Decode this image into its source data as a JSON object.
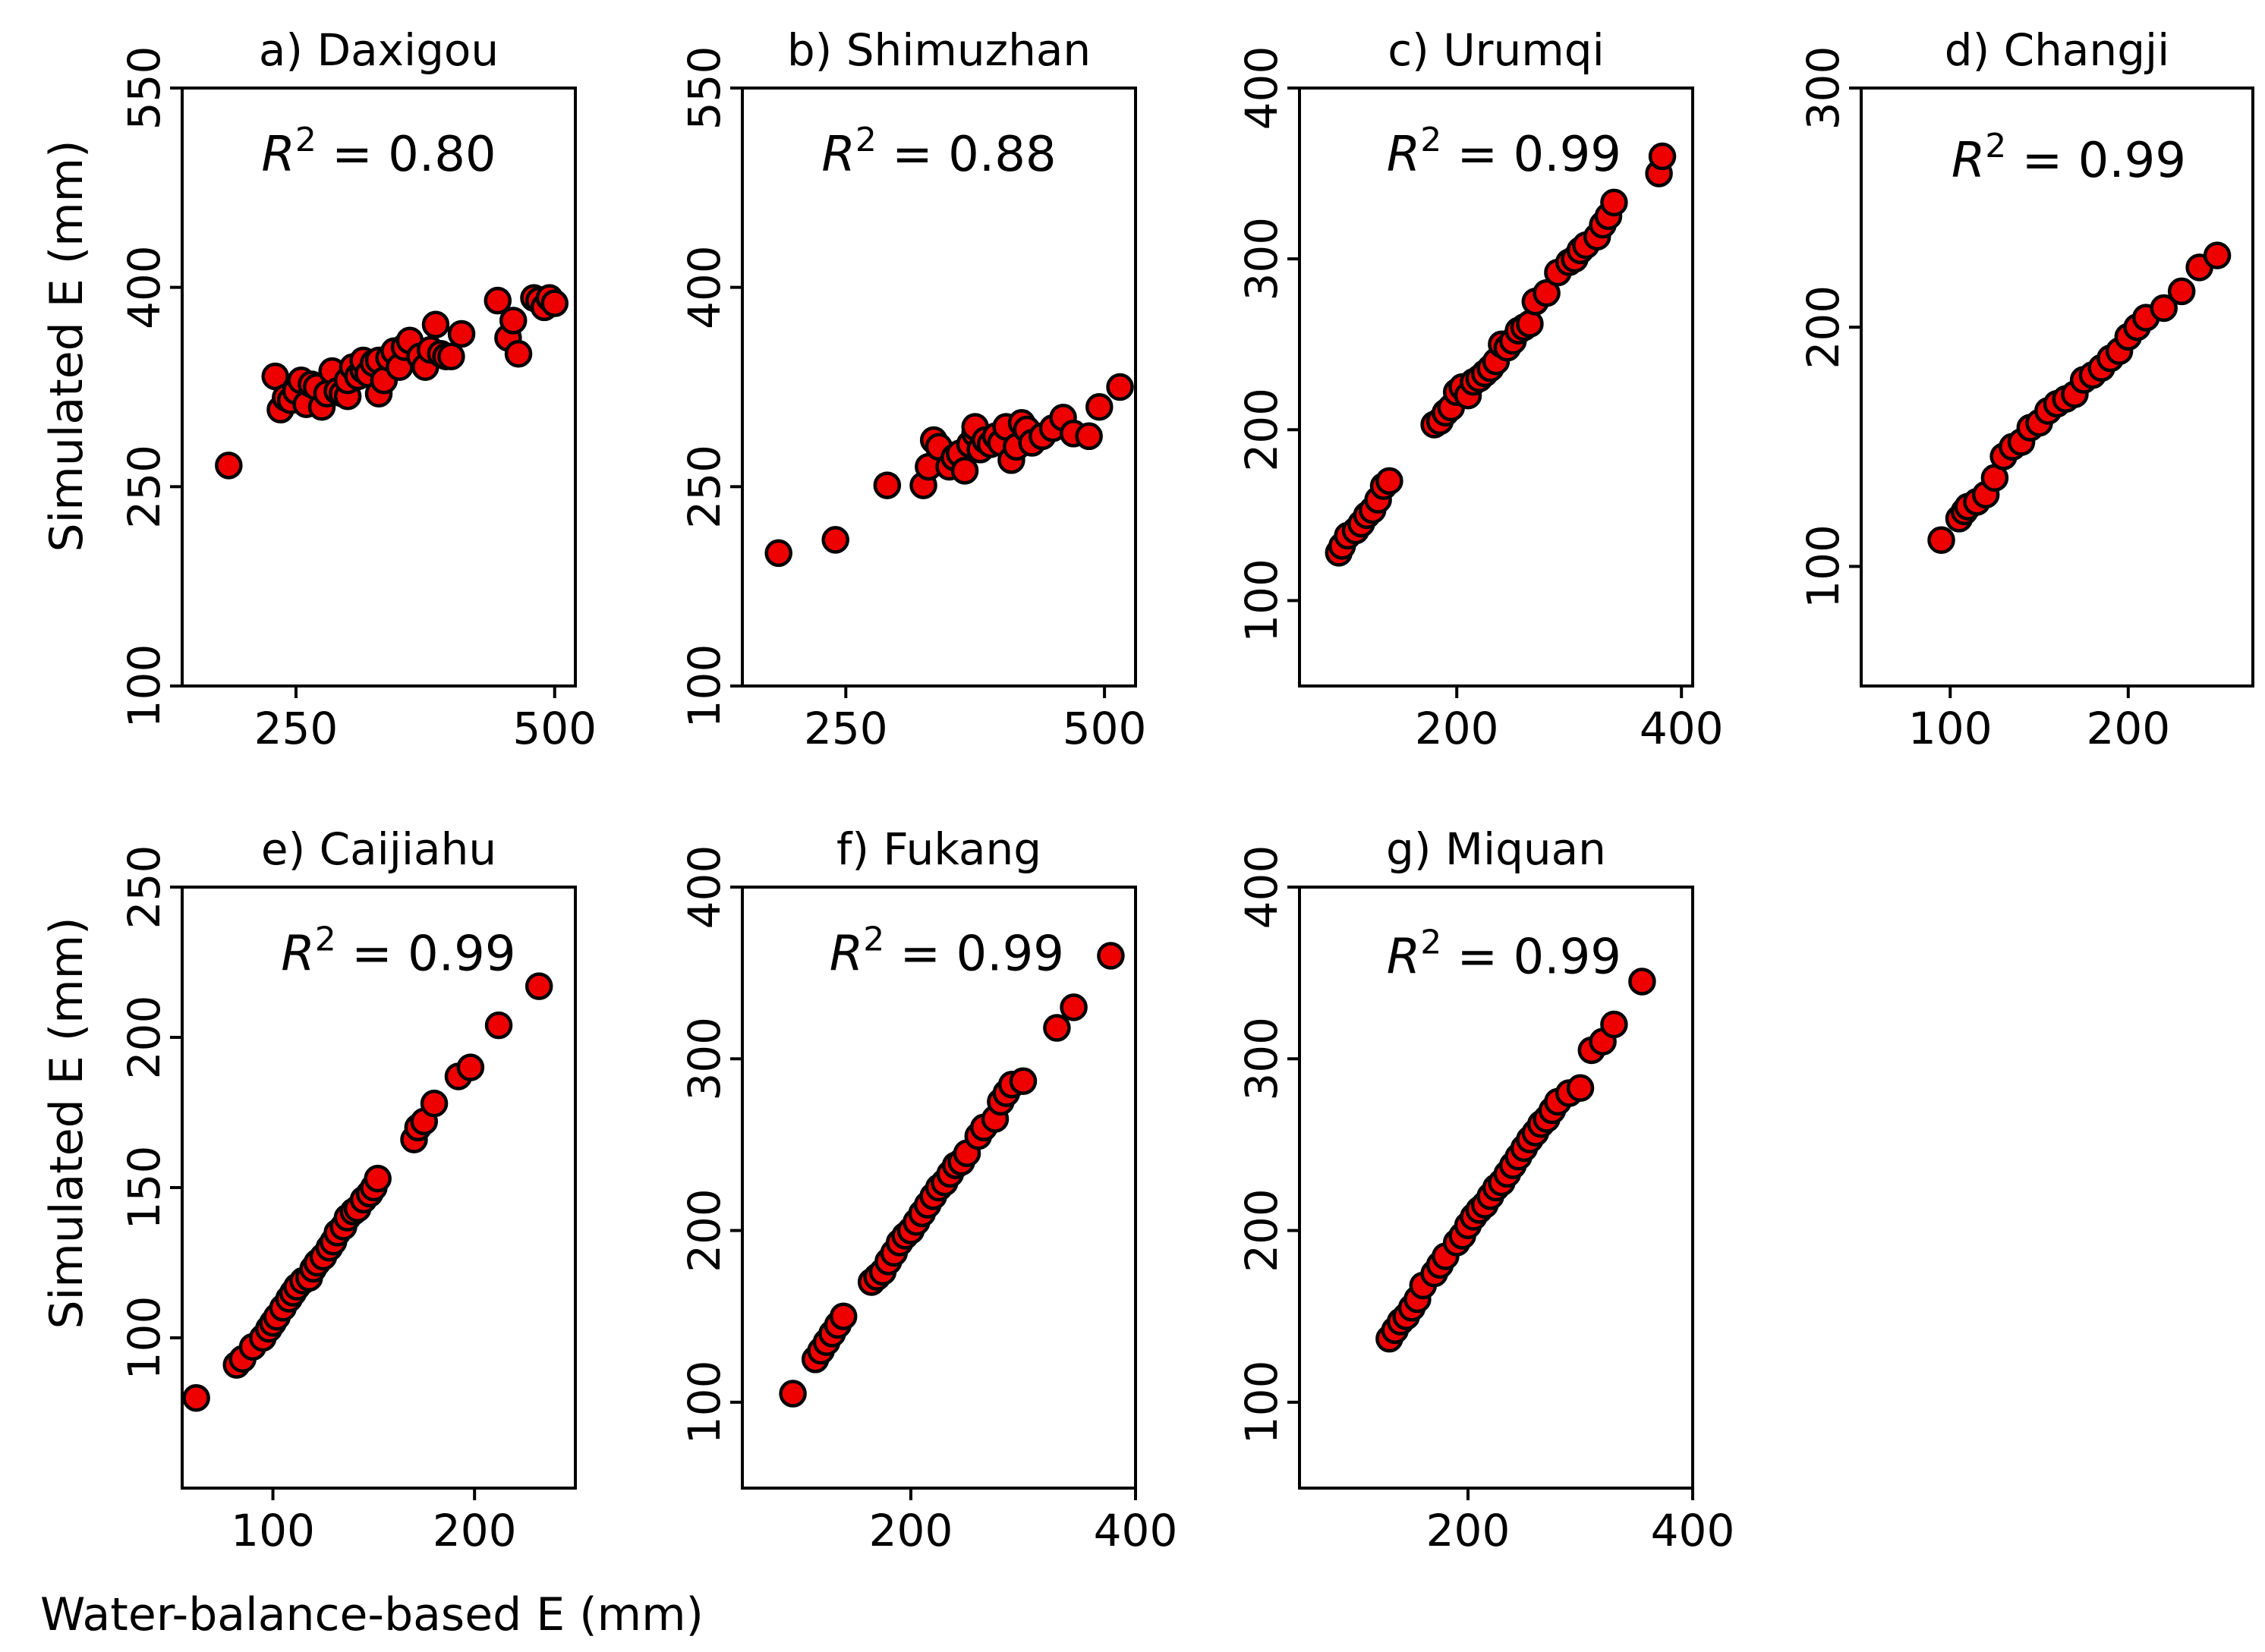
{
  "figure": {
    "ylabel_top": "Simulated E (mm)",
    "ylabel_bottom": "Simulated E (mm)",
    "xlabel": "Water-balance-based E (mm)"
  },
  "chart_data": [
    {
      "type": "scatter",
      "title": "a) Daxigou",
      "r2_label": "R",
      "r2_value": "= 0.80",
      "xlim": [
        140,
        520
      ],
      "ylim": [
        100,
        550
      ],
      "xticks": [
        250,
        500
      ],
      "yticks": [
        100,
        250,
        400,
        550
      ],
      "x": [
        185,
        230,
        235,
        240,
        245,
        250,
        255,
        260,
        265,
        270,
        275,
        280,
        285,
        290,
        295,
        300,
        300,
        305,
        310,
        315,
        315,
        320,
        325,
        330,
        330,
        335,
        340,
        345,
        350,
        355,
        360,
        370,
        375,
        380,
        385,
        390,
        395,
        400,
        410,
        445,
        455,
        460,
        465,
        480,
        485,
        490,
        495,
        500
      ],
      "y": [
        266,
        333,
        308,
        317,
        315,
        322,
        330,
        312,
        327,
        325,
        310,
        320,
        337,
        322,
        320,
        318,
        330,
        340,
        333,
        338,
        345,
        335,
        343,
        320,
        345,
        330,
        347,
        352,
        340,
        355,
        360,
        348,
        340,
        353,
        372,
        350,
        348,
        348,
        365,
        390,
        362,
        375,
        350,
        392,
        390,
        385,
        392,
        388
      ]
    },
    {
      "type": "scatter",
      "title": "b) Shimuzhan",
      "r2_label": "R",
      "r2_value": "= 0.88",
      "xlim": [
        150,
        530
      ],
      "ylim": [
        100,
        550
      ],
      "xticks": [
        250,
        500
      ],
      "yticks": [
        100,
        250,
        400,
        550
      ],
      "x": [
        185,
        240,
        290,
        325,
        330,
        335,
        340,
        350,
        355,
        360,
        365,
        370,
        375,
        375,
        380,
        385,
        390,
        395,
        400,
        405,
        410,
        415,
        420,
        425,
        430,
        440,
        450,
        460,
        470,
        485,
        495,
        515
      ],
      "y": [
        200,
        210,
        251,
        251,
        265,
        285,
        280,
        265,
        272,
        275,
        262,
        282,
        290,
        295,
        278,
        285,
        282,
        288,
        283,
        295,
        270,
        280,
        298,
        293,
        283,
        288,
        294,
        302,
        290,
        288,
        310,
        325
      ]
    },
    {
      "type": "scatter",
      "title": "c) Urumqi",
      "r2_label": "R",
      "r2_value": "= 0.99",
      "xlim": [
        60,
        410
      ],
      "ylim": [
        50,
        400
      ],
      "xticks": [
        200,
        400
      ],
      "yticks": [
        100,
        200,
        300,
        400
      ],
      "x": [
        95,
        98,
        103,
        110,
        115,
        120,
        125,
        130,
        135,
        140,
        180,
        185,
        190,
        195,
        200,
        205,
        210,
        215,
        220,
        225,
        230,
        235,
        240,
        245,
        250,
        255,
        260,
        265,
        270,
        280,
        290,
        300,
        305,
        310,
        315,
        325,
        330,
        335,
        340,
        380,
        383
      ],
      "y": [
        128,
        132,
        138,
        141,
        145,
        150,
        153,
        159,
        167,
        170,
        203,
        205,
        210,
        213,
        222,
        225,
        220,
        228,
        230,
        233,
        236,
        240,
        250,
        248,
        252,
        258,
        260,
        262,
        275,
        280,
        292,
        298,
        300,
        305,
        308,
        313,
        320,
        325,
        333,
        350,
        360
      ]
    },
    {
      "type": "scatter",
      "title": "d) Changji",
      "r2_label": "R",
      "r2_value": "= 0.99",
      "xlim": [
        50,
        270
      ],
      "ylim": [
        50,
        300
      ],
      "xticks": [
        100,
        200
      ],
      "yticks": [
        100,
        200,
        300
      ],
      "x": [
        95,
        105,
        108,
        110,
        115,
        120,
        125,
        130,
        135,
        140,
        145,
        150,
        155,
        160,
        165,
        170,
        175,
        180,
        185,
        190,
        195,
        200,
        205,
        210,
        220,
        230,
        240,
        250
      ],
      "y": [
        111,
        120,
        123,
        125,
        127,
        130,
        137,
        146,
        150,
        152,
        158,
        160,
        165,
        168,
        170,
        172,
        178,
        180,
        183,
        187,
        190,
        196,
        200,
        204,
        208,
        215,
        225,
        230
      ]
    },
    {
      "type": "scatter",
      "title": "e) Caijiahu",
      "r2_label": "R",
      "r2_value": "= 0.99",
      "xlim": [
        55,
        250
      ],
      "ylim": [
        50,
        250
      ],
      "xticks": [
        100,
        200
      ],
      "yticks": [
        100,
        150,
        200,
        250
      ],
      "x": [
        62,
        82,
        85,
        90,
        95,
        98,
        100,
        102,
        105,
        108,
        110,
        112,
        115,
        118,
        120,
        122,
        125,
        128,
        130,
        132,
        135,
        137,
        140,
        142,
        145,
        148,
        150,
        152,
        170,
        172,
        175,
        180,
        192,
        198,
        212,
        232
      ],
      "y": [
        80,
        91,
        93,
        97,
        100,
        103,
        105,
        107,
        110,
        113,
        115,
        117,
        119,
        120,
        123,
        125,
        127,
        130,
        132,
        135,
        137,
        140,
        142,
        143,
        146,
        148,
        150,
        153,
        166,
        170,
        172,
        178,
        187,
        190,
        204,
        217
      ]
    },
    {
      "type": "scatter",
      "title": "f) Fukang",
      "r2_label": "R",
      "r2_value": "= 0.99",
      "xlim": [
        50,
        400
      ],
      "ylim": [
        50,
        400
      ],
      "xticks": [
        200,
        400
      ],
      "yticks": [
        100,
        200,
        300,
        400
      ],
      "x": [
        95,
        115,
        120,
        125,
        130,
        135,
        140,
        165,
        170,
        175,
        180,
        185,
        190,
        195,
        200,
        205,
        210,
        215,
        220,
        225,
        230,
        235,
        240,
        245,
        250,
        260,
        265,
        275,
        280,
        285,
        290,
        300,
        330,
        345,
        378
      ],
      "y": [
        105,
        125,
        130,
        135,
        140,
        145,
        150,
        170,
        173,
        176,
        182,
        187,
        193,
        197,
        200,
        205,
        210,
        215,
        220,
        225,
        228,
        233,
        238,
        240,
        245,
        255,
        260,
        265,
        275,
        280,
        285,
        287,
        318,
        330,
        360
      ]
    },
    {
      "type": "scatter",
      "title": "g) Miquan",
      "r2_label": "R",
      "r2_value": "= 0.99",
      "xlim": [
        50,
        400
      ],
      "ylim": [
        50,
        400
      ],
      "xticks": [
        200,
        400
      ],
      "yticks": [
        100,
        200,
        300,
        400
      ],
      "x": [
        130,
        135,
        140,
        145,
        150,
        155,
        160,
        170,
        175,
        180,
        190,
        195,
        200,
        205,
        210,
        215,
        220,
        225,
        230,
        235,
        240,
        245,
        250,
        255,
        260,
        265,
        270,
        275,
        280,
        290,
        300,
        310,
        320,
        330,
        355
      ],
      "y": [
        137,
        142,
        147,
        150,
        155,
        160,
        168,
        175,
        180,
        185,
        193,
        197,
        203,
        208,
        212,
        215,
        220,
        225,
        228,
        233,
        238,
        243,
        248,
        253,
        257,
        262,
        265,
        270,
        275,
        280,
        283,
        305,
        310,
        320,
        345
      ]
    }
  ]
}
